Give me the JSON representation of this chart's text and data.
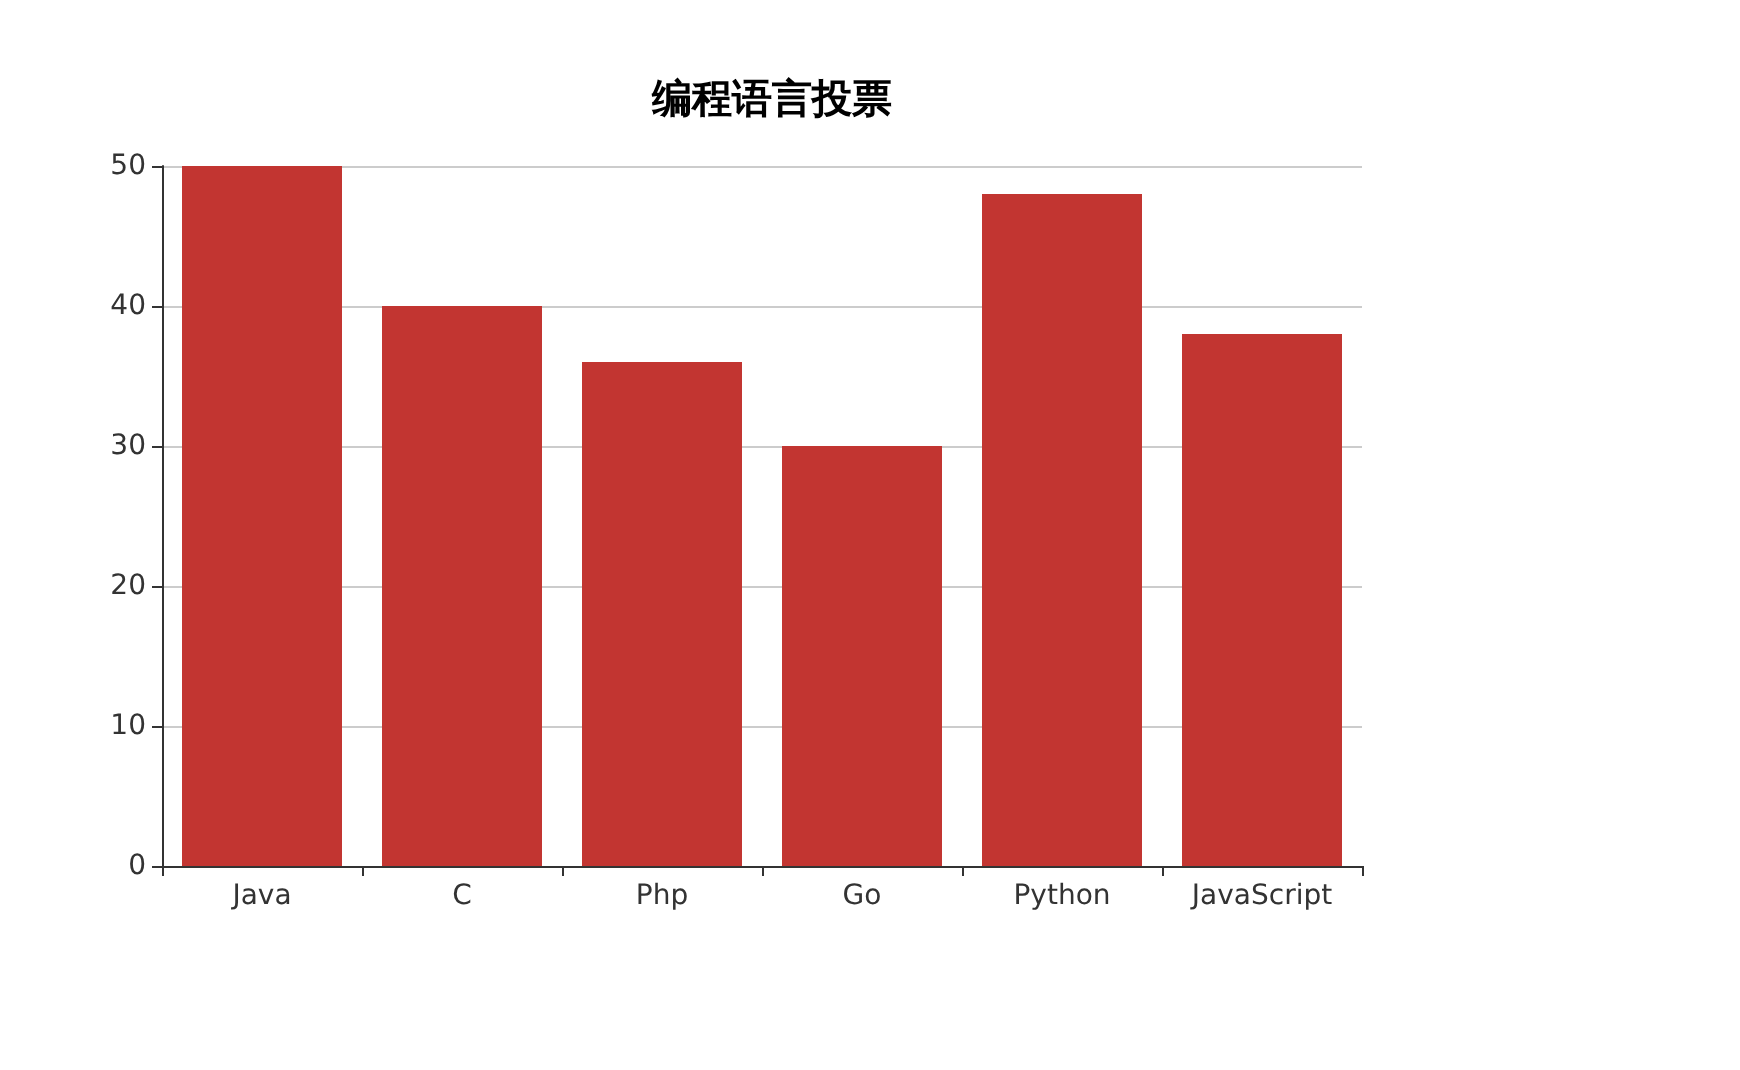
{
  "chart_data": {
    "type": "bar",
    "title": "编程语言投票",
    "categories": [
      "Java",
      "C",
      "Php",
      "Go",
      "Python",
      "JavaScript"
    ],
    "values": [
      50,
      40,
      36,
      30,
      48,
      38
    ],
    "color": "#c23531",
    "ylim": [
      0,
      50
    ],
    "yticks": [
      0,
      10,
      20,
      30,
      40,
      50
    ],
    "grid": "y"
  }
}
